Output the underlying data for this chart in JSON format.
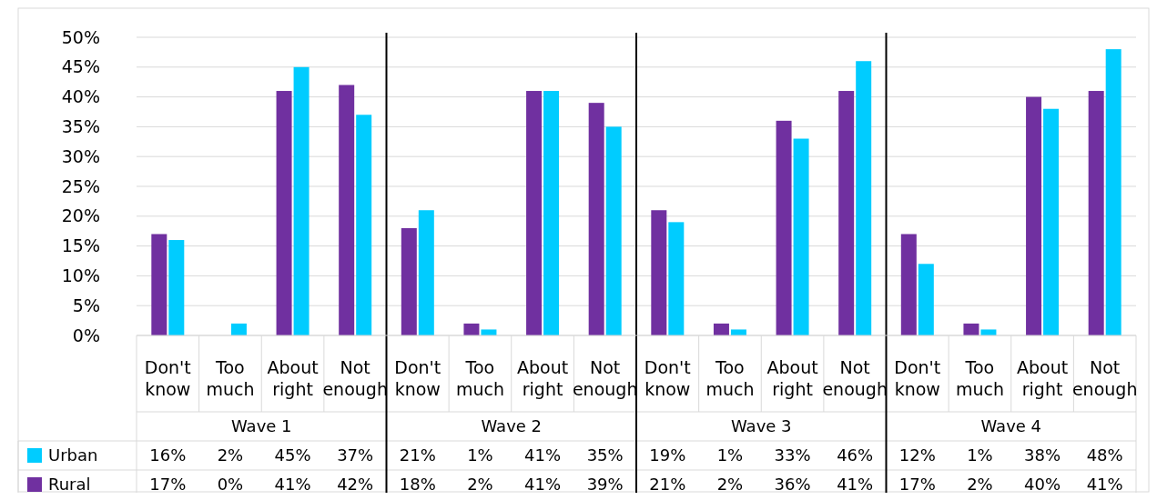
{
  "chart_data": {
    "type": "bar",
    "categories": [
      "Don't know",
      "Too much",
      "About right",
      "Not enough",
      "Don't know",
      "Too much",
      "About right",
      "Not enough",
      "Don't know",
      "Too much",
      "About right",
      "Not enough",
      "Don't know",
      "Too much",
      "About right",
      "Not enough"
    ],
    "series": [
      {
        "name": "Rural",
        "color": "#7030a0",
        "values": [
          17,
          0,
          41,
          42,
          18,
          2,
          41,
          39,
          21,
          2,
          36,
          41,
          17,
          2,
          40,
          41
        ],
        "value_labels": [
          "17%",
          "0%",
          "41%",
          "42%",
          "18%",
          "2%",
          "41%",
          "39%",
          "21%",
          "2%",
          "36%",
          "41%",
          "17%",
          "2%",
          "40%",
          "41%"
        ]
      },
      {
        "name": "Urban",
        "color": "#00ccff",
        "values": [
          16,
          2,
          45,
          37,
          21,
          1,
          41,
          35,
          19,
          1,
          33,
          46,
          12,
          1,
          38,
          48
        ],
        "value_labels": [
          "16%",
          "2%",
          "45%",
          "37%",
          "21%",
          "1%",
          "41%",
          "35%",
          "19%",
          "1%",
          "33%",
          "46%",
          "12%",
          "1%",
          "38%",
          "48%"
        ]
      }
    ],
    "annotations": [
      "Wave 1",
      "Wave 2",
      "Wave 3",
      "Wave 4"
    ],
    "ylim": [
      0,
      50
    ],
    "yticks": [
      {
        "value": 0,
        "label": "0%"
      },
      {
        "value": 5,
        "label": "5%"
      },
      {
        "value": 10,
        "label": "10%"
      },
      {
        "value": 15,
        "label": "15%"
      },
      {
        "value": 20,
        "label": "20%"
      },
      {
        "value": 25,
        "label": "25%"
      },
      {
        "value": 30,
        "label": "30%"
      },
      {
        "value": 35,
        "label": "35%"
      },
      {
        "value": 40,
        "label": "40%"
      },
      {
        "value": 45,
        "label": "45%"
      },
      {
        "value": 50,
        "label": "50%"
      }
    ],
    "grid": "y",
    "legend": "bottom"
  }
}
